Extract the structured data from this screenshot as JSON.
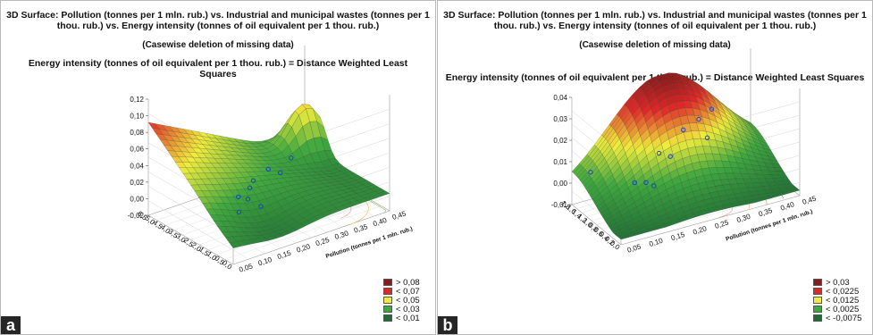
{
  "panels": [
    {
      "letter": "a",
      "title": "3D Surface: Pollution (tonnes per 1 mln. rub.) vs. Industrial and municipal wastes (tonnes per 1 thou. rub.) vs. Energy intensity (tonnes of oil equivalent per 1 thou. rub.)",
      "subtitle": "(Casewise deletion of missing data)",
      "zlabel": "Energy intensity (tonnes of oil equivalent per 1 thou. rub.) = Distance Weighted Least Squares",
      "z_ticks": [
        "0,12",
        "0,10",
        "0,08",
        "0,06",
        "0,04",
        "0,02",
        "0,00",
        "-0,02"
      ],
      "x_ticks": [
        "0,05",
        "0,10",
        "0,15",
        "0,20",
        "0,25",
        "0,30",
        "0,35",
        "0,40",
        "0,45"
      ],
      "y_ticks": [
        "0,0",
        "0,5",
        "1,0",
        "1,5",
        "2,0",
        "2,5",
        "3,0",
        "3,5",
        "4,0",
        "4,5",
        "5,0",
        "5,5"
      ],
      "x_axis_title": "Pollution (tonnes per 1 mln. rub.)",
      "legend": [
        {
          "label": "> 0,08",
          "color": "#8b1a1a"
        },
        {
          "label": "< 0,07",
          "color": "#e02828"
        },
        {
          "label": "< 0,05",
          "color": "#f0ec3c"
        },
        {
          "label": "< 0,03",
          "color": "#3fa83f"
        },
        {
          "label": "< 0,01",
          "color": "#1f6d35"
        }
      ]
    },
    {
      "letter": "b",
      "title": "3D Surface: Pollution (tonnes per 1 mln. rub.) vs. Industrial and municipal wastes (tonnes per 1 thou. rub.) vs. Energy intensity (tonnes of oil equivalent per 1 thou. rub.)",
      "subtitle": "(Casewise deletion of missing data)",
      "zlabel": "Energy intensity (tonnes of oil equivalent per 1 thou. rub.) = Distance Weighted Least Squares",
      "z_ticks": [
        "0,04",
        "0,03",
        "0,02",
        "0,01",
        "0,00",
        "-0,01"
      ],
      "x_ticks": [
        "0,05",
        "0,10",
        "0,15",
        "0,20",
        "0,25",
        "0,30",
        "0,35",
        "0,40",
        "0,45"
      ],
      "y_ticks": [
        "0,0",
        "0,2",
        "0,4",
        "0,6",
        "0,8",
        "1,0",
        "1,2",
        "1,4",
        "1,6",
        "1,8"
      ],
      "x_axis_title": "Pollution (tonnes per 1 mln. rub.)",
      "legend": [
        {
          "label": "> 0,03",
          "color": "#8b1a1a"
        },
        {
          "label": "< 0,0225",
          "color": "#e02828"
        },
        {
          "label": "< 0,0125",
          "color": "#f0ec3c"
        },
        {
          "label": "< 0,0025",
          "color": "#3fa83f"
        },
        {
          "label": "< -0,0075",
          "color": "#1f6d35"
        }
      ]
    }
  ],
  "chart_data": [
    {
      "type": "surface",
      "title": "3D Surface: Pollution (tonnes per 1 mln. rub.) vs. Industrial and municipal wastes (tonnes per 1 thou. rub.) vs. Energy intensity (tonnes of oil equivalent per 1 thou. rub.)",
      "subtitle": "(Casewise deletion of missing data)",
      "xlabel": "Pollution (tonnes per 1 mln. rub.)",
      "zlabel": "Energy intensity (tonnes of oil equivalent per 1 thou. rub.) = Distance Weighted Least Squares",
      "xlim": [
        0.05,
        0.45
      ],
      "ylim": [
        0,
        5.5
      ],
      "zlim": [
        -0.02,
        0.12
      ],
      "grid": true,
      "legend_position": "bottom-right",
      "legend_levels": [
        "> 0,08",
        "< 0,07",
        "< 0,05",
        "< 0,03",
        "< 0,01"
      ]
    },
    {
      "type": "surface",
      "title": "3D Surface: Pollution (tonnes per 1 mln. rub.) vs. Industrial and municipal wastes (tonnes per 1 thou. rub.) vs. Energy intensity (tonnes of oil equivalent per 1 thou. rub.)",
      "subtitle": "(Casewise deletion of missing data)",
      "xlabel": "Pollution (tonnes per 1 mln. rub.)",
      "zlabel": "Energy intensity (tonnes of oil equivalent per 1 thou. rub.) = Distance Weighted Least Squares",
      "xlim": [
        0.05,
        0.45
      ],
      "ylim": [
        0,
        1.8
      ],
      "zlim": [
        -0.01,
        0.04
      ],
      "grid": true,
      "legend_position": "bottom-right",
      "legend_levels": [
        "> 0,03",
        "< 0,0225",
        "< 0,0125",
        "< 0,0025",
        "< -0,0075"
      ]
    }
  ]
}
